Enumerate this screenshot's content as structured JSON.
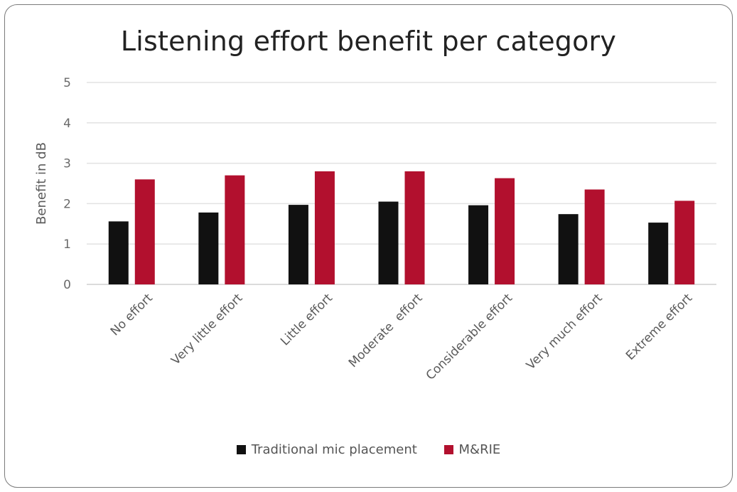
{
  "chart_data": {
    "type": "bar",
    "title": "Listening effort benefit per category",
    "ylabel": "Benefit in dB",
    "xlabel": "",
    "ylim": [
      0,
      5
    ],
    "yticks": [
      0,
      1,
      2,
      3,
      4,
      5
    ],
    "grid": true,
    "legend_position": "bottom",
    "categories": [
      "No effort",
      "Very little effort",
      "Little effort",
      "Moderate  effort",
      "Considerable effort",
      "Very much effort",
      "Extreme effort"
    ],
    "series": [
      {
        "name": "Traditional mic placement",
        "color": "#111111",
        "values": [
          1.56,
          1.78,
          1.97,
          2.05,
          1.96,
          1.74,
          1.53
        ]
      },
      {
        "name": "M&RIE",
        "color": "#b2102e",
        "values": [
          2.6,
          2.7,
          2.8,
          2.8,
          2.63,
          2.35,
          2.07
        ]
      }
    ]
  }
}
